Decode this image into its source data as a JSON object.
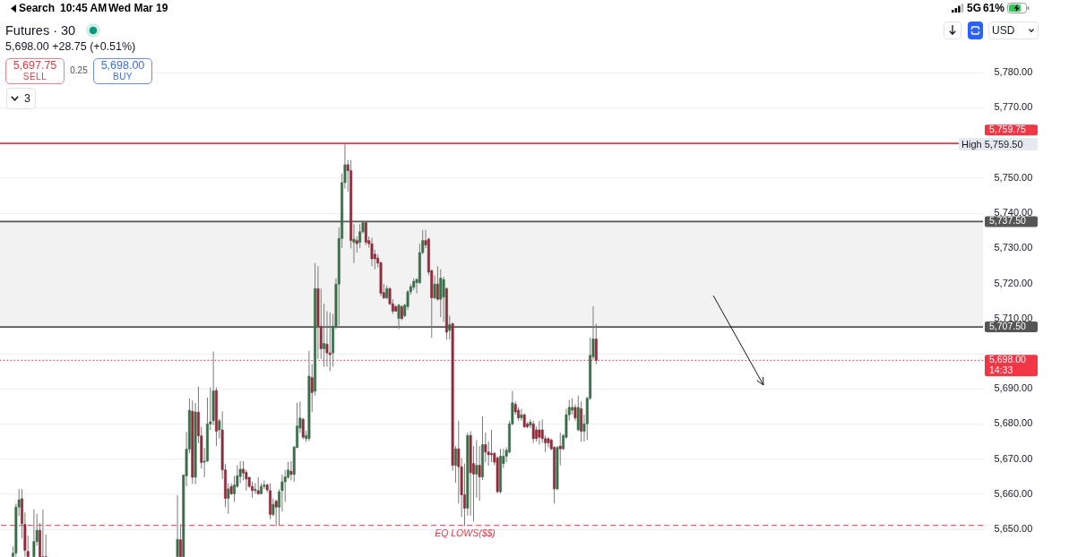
{
  "chart_data": {
    "type": "candlestick",
    "title": "Futures · 30",
    "subtitle": "5,698.00 +28.75 (+0.51%)",
    "categories": [
      null,
      null,
      null,
      null,
      null,
      null,
      null,
      null,
      null,
      null,
      null,
      null,
      null,
      null,
      null,
      null,
      null,
      null,
      null,
      null,
      null,
      null,
      null,
      null,
      null,
      null,
      null,
      null,
      null,
      null,
      null,
      null,
      null,
      null,
      null,
      null,
      null,
      null,
      null,
      null,
      null,
      null,
      null,
      null,
      null,
      null,
      null,
      null,
      null,
      null,
      null,
      null,
      null,
      null,
      null,
      null,
      null,
      null,
      null,
      null,
      null,
      null,
      null,
      null,
      null,
      null,
      null,
      null,
      null,
      null,
      null,
      null,
      null,
      null,
      null,
      null,
      null,
      null,
      null,
      null,
      null,
      null,
      null,
      null,
      null,
      null,
      null,
      null,
      null,
      null,
      null,
      null,
      null,
      null,
      null,
      null,
      null,
      null,
      null,
      null,
      null,
      null,
      null,
      null,
      null,
      null,
      null,
      null,
      null,
      null,
      null,
      null,
      null,
      null,
      null,
      null,
      null,
      null,
      null,
      null,
      null,
      null,
      null,
      null,
      null,
      null,
      null,
      null,
      null,
      null,
      null,
      null,
      null,
      null,
      null,
      null,
      null,
      null,
      null,
      null,
      null,
      null,
      null,
      null,
      null,
      null,
      null,
      null,
      null,
      null,
      null,
      null,
      null,
      null,
      null,
      null,
      null,
      null,
      null,
      null,
      null,
      null,
      null,
      null,
      null,
      null,
      null,
      null,
      null,
      null,
      null,
      null,
      null,
      null,
      null,
      null,
      null,
      null,
      null,
      null,
      null,
      null,
      null,
      null,
      null,
      null,
      null,
      null,
      null,
      null,
      null,
      null,
      null,
      null,
      null,
      null,
      null,
      null,
      null,
      null,
      null,
      null,
      null,
      null,
      null,
      null,
      null,
      null,
      null,
      null,
      null,
      null,
      null,
      null,
      null,
      null,
      null,
      null,
      null,
      null,
      null,
      null,
      null,
      null,
      null,
      null,
      null,
      null,
      null,
      null,
      null,
      null,
      null,
      null,
      null,
      null,
      null,
      null,
      null,
      null,
      null,
      null,
      null,
      null,
      null,
      null,
      null,
      null,
      null,
      null,
      null,
      null,
      null,
      null,
      null,
      null,
      null,
      null,
      null,
      null,
      null,
      null,
      null,
      null,
      null,
      null,
      null,
      null,
      null,
      null,
      null,
      null,
      null,
      null,
      null,
      null,
      null,
      null,
      null,
      null,
      null,
      null,
      null,
      null,
      null,
      null,
      null,
      null,
      null,
      null,
      null,
      null,
      null,
      null,
      null,
      null,
      null,
      null,
      null,
      null,
      null,
      null,
      null,
      null,
      null,
      null,
      null,
      null,
      null,
      null,
      null,
      null,
      null,
      null,
      null,
      null,
      null,
      null,
      null,
      null,
      null,
      null,
      null,
      null,
      null,
      null,
      null,
      null,
      null
    ],
    "ohlc": [
      null,
      null,
      null,
      null,
      [
        5642.1,
        5645.0,
        5642.1,
        5643.1
      ],
      [
        5643.1,
        5657.2,
        5642.1,
        5656.2
      ],
      [
        5656.2,
        5661.4,
        5653.6,
        5658.3
      ],
      [
        5658.6,
        5661.3,
        5647.3,
        5651.5
      ],
      [
        5651.3,
        5654.7,
        5642.1,
        5643.9
      ],
      [
        5643.6,
        5648.1,
        5642.1,
        5642.1
      ],
      null,
      [
        5642.1,
        5655.6,
        5642.1,
        5646.4
      ],
      [
        5646.4,
        5654.3,
        5645.2,
        5649.6
      ],
      [
        5649.6,
        5651.7,
        5642.1,
        5642.1
      ],
      [
        5642.1,
        5655.5,
        5642.1,
        5642.1
      ],
      [
        5642.1,
        5648.4,
        5642.1,
        5642.1
      ],
      null,
      null,
      null,
      null,
      null,
      null,
      null,
      null,
      null,
      null,
      null,
      null,
      null,
      null,
      null,
      null,
      null,
      null,
      null,
      null,
      null,
      null,
      null,
      null,
      null,
      null,
      null,
      null,
      null,
      null,
      null,
      null,
      null,
      null,
      null,
      null,
      null,
      null,
      null,
      null,
      null,
      null,
      null,
      [
        5642.1,
        5659.6,
        5642.1,
        5647.0
      ],
      [
        5646.9,
        5651.3,
        5642.1,
        5642.1
      ],
      [
        5642.1,
        5665.5,
        5642.1,
        5665.3
      ],
      [
        5665.1,
        5677.6,
        5662.1,
        5672.7
      ],
      [
        5672.7,
        5687.1,
        5671.5,
        5683.8
      ],
      [
        5683.5,
        5686.6,
        5662.8,
        5664.7
      ],
      [
        5664.7,
        5685.9,
        5662.7,
        5683.3
      ],
      [
        5683.2,
        5690.5,
        5674.4,
        5676.5
      ],
      [
        5676.5,
        5679.1,
        5667.2,
        5668.9
      ],
      [
        5669.0,
        5673.1,
        5664.7,
        5669.3
      ],
      [
        5669.3,
        5687.4,
        5669.1,
        5679.9
      ],
      [
        5679.9,
        5690.3,
        5678.2,
        5680.5
      ],
      [
        5680.8,
        5700.5,
        5679.5,
        5689.3
      ],
      [
        5689.4,
        5690.3,
        5673.6,
        5677.8
      ],
      [
        5678.2,
        5681.3,
        5675.7,
        5680.8
      ],
      [
        5678.2,
        5683.5,
        5664.2,
        5666.8
      ],
      [
        5666.8,
        5668.5,
        5656.2,
        5658.7
      ],
      [
        5658.7,
        5663.0,
        5654.3,
        5661.4
      ],
      [
        5662.1,
        5663.0,
        5659.7,
        5660.0
      ],
      [
        5660.0,
        5665.1,
        5657.7,
        5662.5
      ],
      [
        5662.1,
        5668.1,
        5661.7,
        5665.1
      ],
      [
        5664.9,
        5669.3,
        5663.0,
        5667.0
      ],
      [
        5667.0,
        5669.3,
        5663.8,
        5665.9
      ],
      [
        5666.1,
        5666.8,
        5660.9,
        5664.2
      ],
      [
        5664.7,
        5664.8,
        5661.7,
        5662.1
      ],
      [
        5662.1,
        5663.4,
        5658.9,
        5660.9
      ],
      [
        5660.9,
        5663.0,
        5660.0,
        5661.3
      ],
      [
        5660.9,
        5664.7,
        5659.7,
        5660.0
      ],
      [
        5660.0,
        5663.0,
        5659.9,
        5662.1
      ],
      [
        5662.1,
        5663.8,
        5661.3,
        5662.5
      ],
      [
        5662.5,
        5663.0,
        5660.4,
        5661.1
      ],
      [
        5660.9,
        5663.0,
        5652.8,
        5654.1
      ],
      [
        5654.1,
        5658.7,
        5653.6,
        5657.0
      ],
      [
        5657.9,
        5658.3,
        5650.7,
        5656.2
      ],
      [
        5656.2,
        5661.3,
        5651.1,
        5660.6
      ],
      [
        5660.9,
        5665.5,
        5654.9,
        5663.4
      ],
      [
        5663.4,
        5666.8,
        5657.7,
        5664.8
      ],
      [
        5664.7,
        5669.1,
        5664.2,
        5666.8
      ],
      [
        5666.4,
        5669.3,
        5663.8,
        5665.5
      ],
      [
        5665.5,
        5673.6,
        5663.4,
        5673.3
      ],
      [
        5673.1,
        5685.9,
        5673.1,
        5679.3
      ],
      [
        5678.7,
        5686.3,
        5677.3,
        5681.6
      ],
      [
        5681.2,
        5681.6,
        5675.5,
        5676.1
      ],
      [
        5675.7,
        5678.0,
        5674.8,
        5676.6
      ],
      [
        5675.7,
        5700.7,
        5675.0,
        5693.5
      ],
      [
        5693.1,
        5696.9,
        5683.3,
        5688.8
      ],
      [
        5689.2,
        5725.7,
        5688.0,
        5718.4
      ],
      [
        5718.4,
        5724.8,
        5698.4,
        5707.7
      ],
      [
        5707.7,
        5718.4,
        5698.4,
        5701.3
      ],
      [
        5701.3,
        5714.1,
        5696.2,
        5702.8
      ],
      [
        5702.6,
        5712.0,
        5696.2,
        5700.1
      ],
      [
        5700.1,
        5711.6,
        5694.9,
        5699.6
      ],
      [
        5700.1,
        5711.2,
        5696.2,
        5707.7
      ],
      [
        5707.7,
        5721.4,
        5706.9,
        5719.7
      ],
      [
        5719.7,
        5735.9,
        5708.0,
        5732.7
      ],
      [
        5732.7,
        5751.2,
        5730.0,
        5748.6
      ],
      [
        5748.6,
        5759.5,
        5746.9,
        5753.7
      ],
      [
        5753.7,
        5755.0,
        5746.0,
        5752.0
      ],
      [
        5752.0,
        5755.0,
        5729.9,
        5732.1
      ],
      [
        5731.6,
        5736.8,
        5725.7,
        5732.5
      ],
      [
        5732.1,
        5733.3,
        5728.7,
        5731.2
      ],
      [
        5731.6,
        5736.8,
        5729.9,
        5734.6
      ],
      [
        5734.6,
        5737.8,
        5734.2,
        5737.2
      ],
      [
        5737.2,
        5737.4,
        5730.8,
        5731.6
      ],
      [
        5732.1,
        5733.3,
        5730.1,
        5731.2
      ],
      [
        5731.2,
        5732.9,
        5724.8,
        5726.9
      ],
      [
        5728.2,
        5729.5,
        5723.9,
        5726.9
      ],
      [
        5727.1,
        5728.2,
        5724.4,
        5725.7
      ],
      [
        5725.8,
        5726.1,
        5716.3,
        5717.1
      ],
      [
        5717.3,
        5719.7,
        5715.4,
        5715.8
      ],
      [
        5715.8,
        5719.3,
        5715.4,
        5718.4
      ],
      [
        5718.4,
        5718.8,
        5713.7,
        5714.1
      ],
      [
        5714.1,
        5715.4,
        5711.2,
        5712.0
      ],
      [
        5713.3,
        5713.7,
        5711.8,
        5712.0
      ],
      [
        5709.9,
        5714.1,
        5706.9,
        5713.7
      ],
      [
        5713.3,
        5713.7,
        5709.4,
        5709.9
      ],
      [
        5710.7,
        5714.1,
        5710.3,
        5713.7
      ],
      [
        5713.3,
        5718.0,
        5712.4,
        5717.5
      ],
      [
        5717.5,
        5719.7,
        5716.7,
        5719.0
      ],
      [
        5718.8,
        5721.4,
        5718.0,
        5720.5
      ],
      [
        5720.1,
        5721.4,
        5717.1,
        5721.0
      ],
      [
        5720.1,
        5731.2,
        5719.7,
        5728.7
      ],
      [
        5728.7,
        5735.1,
        5728.2,
        5732.1
      ],
      [
        5732.1,
        5735.1,
        5729.9,
        5730.8
      ],
      [
        5732.5,
        5732.9,
        5722.2,
        5723.1
      ],
      [
        5723.5,
        5723.9,
        5704.4,
        5715.8
      ],
      [
        5715.8,
        5722.2,
        5715.4,
        5719.7
      ],
      [
        5719.7,
        5724.8,
        5715.0,
        5715.4
      ],
      [
        5715.4,
        5723.9,
        5710.3,
        5721.4
      ],
      [
        5716.0,
        5721.8,
        5709.0,
        5721.0
      ],
      [
        5718.4,
        5718.8,
        5703.9,
        5706.0
      ],
      [
        5706.5,
        5710.7,
        5704.0,
        5708.2
      ],
      [
        5708.4,
        5708.8,
        5666.5,
        5668.1
      ],
      [
        5668.1,
        5673.6,
        5663.1,
        5672.8
      ],
      [
        5672.8,
        5680.8,
        5657.2,
        5667.7
      ],
      [
        5667.7,
        5670.2,
        5653.4,
        5659.7
      ],
      [
        5659.7,
        5668.6,
        5650.8,
        5655.9
      ],
      [
        5655.9,
        5677.4,
        5653.8,
        5676.6
      ],
      [
        5676.6,
        5677.8,
        5653.8,
        5666.0
      ],
      [
        5668.6,
        5673.6,
        5652.1,
        5665.6
      ],
      [
        5665.6,
        5675.3,
        5658.9,
        5668.1
      ],
      [
        5668.1,
        5673.6,
        5658.0,
        5664.8
      ],
      [
        5664.8,
        5682.1,
        5663.9,
        5674.0
      ],
      [
        5674.0,
        5677.4,
        5669.0,
        5671.9
      ],
      [
        5671.9,
        5674.9,
        5668.0,
        5671.1
      ],
      [
        5671.5,
        5678.2,
        5669.0,
        5671.1
      ],
      [
        5671.5,
        5671.9,
        5668.1,
        5669.0
      ],
      [
        5670.2,
        5670.7,
        5660.1,
        5660.6
      ],
      [
        5660.6,
        5672.8,
        5660.1,
        5670.7
      ],
      [
        5668.6,
        5672.8,
        5667.3,
        5670.7
      ],
      [
        5670.7,
        5673.2,
        5669.0,
        5672.4
      ],
      [
        5671.9,
        5680.8,
        5671.5,
        5679.9
      ],
      [
        5679.9,
        5689.3,
        5679.5,
        5685.9
      ],
      [
        5685.5,
        5686.3,
        5682.5,
        5683.3
      ],
      [
        5683.8,
        5684.6,
        5680.8,
        5681.6
      ],
      [
        5681.6,
        5684.2,
        5680.8,
        5682.5
      ],
      [
        5682.5,
        5682.9,
        5678.7,
        5679.1
      ],
      [
        5679.9,
        5680.4,
        5678.7,
        5679.1
      ],
      [
        5679.5,
        5681.2,
        5678.7,
        5680.4
      ],
      [
        5679.9,
        5680.8,
        5674.5,
        5675.7
      ],
      [
        5678.2,
        5679.1,
        5674.9,
        5675.7
      ],
      [
        5678.2,
        5680.8,
        5674.0,
        5676.1
      ],
      [
        5678.2,
        5681.2,
        5674.5,
        5675.7
      ],
      [
        5675.7,
        5676.6,
        5671.9,
        5674.5
      ],
      [
        5675.7,
        5676.1,
        5673.2,
        5674.5
      ],
      [
        5675.3,
        5675.7,
        5672.4,
        5672.8
      ],
      [
        5673.2,
        5673.6,
        5657.2,
        5661.4
      ],
      [
        5661.4,
        5673.6,
        5661.0,
        5673.2
      ],
      [
        5673.6,
        5677.4,
        5668.1,
        5672.8
      ],
      [
        5672.8,
        5677.0,
        5672.4,
        5676.6
      ],
      [
        5676.1,
        5684.2,
        5675.7,
        5682.5
      ],
      [
        5682.5,
        5686.7,
        5680.8,
        5684.6
      ],
      [
        5683.8,
        5687.2,
        5682.5,
        5684.6
      ],
      [
        5684.6,
        5685.5,
        5680.8,
        5681.6
      ],
      [
        5678.2,
        5688.0,
        5677.8,
        5684.6
      ],
      [
        5684.2,
        5686.3,
        5674.9,
        5677.8
      ],
      [
        5677.8,
        5682.5,
        5674.9,
        5679.9
      ],
      [
        5679.9,
        5687.6,
        5675.3,
        5687.2
      ],
      [
        5687.2,
        5704.5,
        5686.7,
        5699.4
      ],
      [
        5699.0,
        5713.4,
        5698.2,
        5704.1
      ],
      [
        5704.1,
        5708.4,
        5696.9,
        5698.0
      ],
      null,
      null,
      null,
      null,
      null,
      null,
      null,
      null,
      null,
      null,
      null,
      null,
      null,
      null,
      null,
      null,
      null,
      null,
      null,
      null,
      null,
      null,
      null,
      null,
      null,
      null,
      null,
      null,
      null,
      null,
      null,
      null,
      null,
      null,
      null,
      null,
      null,
      null,
      null,
      null,
      null,
      null,
      null,
      null,
      null,
      null,
      null,
      null,
      null,
      null,
      null,
      null,
      null,
      null,
      null,
      null,
      null,
      null,
      null,
      null,
      null,
      null,
      null,
      null,
      null,
      null,
      null,
      null,
      null,
      null,
      null,
      null,
      null,
      null,
      null,
      null,
      null,
      null,
      null,
      null,
      null,
      null,
      null,
      null,
      null,
      null,
      null,
      null,
      null,
      null,
      null,
      null,
      null,
      null,
      null,
      null,
      null,
      null,
      null,
      null,
      null,
      null,
      null,
      null,
      null,
      null,
      null,
      null,
      null,
      null,
      null,
      null,
      null,
      null,
      null,
      null,
      null,
      null,
      null,
      null,
      null,
      null,
      null,
      null,
      null,
      null,
      null,
      null,
      null
    ],
    "colors": [
      null,
      null,
      null,
      null,
      "#3a6e48",
      "#3a6e48",
      "#3a6e48",
      "#8e2c3b",
      "#8e2c3b",
      "#8e2c3b",
      null,
      "#3a6e48",
      "#3a6e48",
      "#8e2c3b",
      "#8e2c3b",
      "#8e2c3b",
      null,
      null,
      null,
      null,
      null,
      null,
      null,
      null,
      null,
      null,
      null,
      null,
      null,
      null,
      null,
      null,
      null,
      null,
      null,
      null,
      null,
      null,
      null,
      null,
      null,
      null,
      null,
      null,
      null,
      null,
      null,
      null,
      null,
      null,
      null,
      null,
      null,
      null,
      null,
      null,
      null,
      null,
      null,
      "#3a6e48",
      "#8e2c3b",
      "#3a6e48",
      "#3a6e48",
      "#3a6e48",
      "#8e2c3b",
      "#3a6e48",
      "#8e2c3b",
      "#8e2c3b",
      "#3a6e48",
      "#3a6e48",
      "#3a6e48",
      "#3a6e48",
      "#8e2c3b",
      "#3a6e48",
      "#8e2c3b",
      "#8e2c3b",
      "#3a6e48",
      "#8e2c3b",
      "#3a6e48",
      "#3a6e48",
      "#3a6e48",
      "#8e2c3b",
      "#8e2c3b",
      "#8e2c3b",
      "#8e2c3b",
      "#3a6e48",
      "#8e2c3b",
      "#3a6e48",
      "#3a6e48",
      "#8e2c3b",
      "#8e2c3b",
      "#3a6e48",
      "#8e2c3b",
      "#3a6e48",
      "#3a6e48",
      "#3a6e48",
      "#3a6e48",
      "#8e2c3b",
      "#3a6e48",
      "#3a6e48",
      "#3a6e48",
      "#8e2c3b",
      "#3a6e48",
      "#3a6e48",
      "#8e2c3b",
      "#3a6e48",
      "#8e2c3b",
      "#8e2c3b",
      "#3a6e48",
      "#8e2c3b",
      "#8e2c3b",
      "#3a6e48",
      "#3a6e48",
      "#3a6e48",
      "#3a6e48",
      "#3a6e48",
      "#8e2c3b",
      "#8e2c3b",
      "#3a6e48",
      "#8e2c3b",
      "#3a6e48",
      "#3a6e48",
      "#8e2c3b",
      "#8e2c3b",
      "#8e2c3b",
      "#8e2c3b",
      "#8e2c3b",
      "#8e2c3b",
      "#8e2c3b",
      "#3a6e48",
      "#8e2c3b",
      "#8e2c3b",
      "#8e2c3b",
      "#3a6e48",
      "#8e2c3b",
      "#3a6e48",
      "#3a6e48",
      "#3a6e48",
      "#3a6e48",
      "#3a6e48",
      "#3a6e48",
      "#3a6e48",
      "#8e2c3b",
      "#8e2c3b",
      "#8e2c3b",
      "#3a6e48",
      "#8e2c3b",
      "#3a6e48",
      "#3a6e48",
      "#8e2c3b",
      "#3a6e48",
      "#8e2c3b",
      "#3a6e48",
      "#8e2c3b",
      "#8e2c3b",
      "#8e2c3b",
      "#3a6e48",
      "#8e2c3b",
      "#8e2c3b",
      "#3a6e48",
      "#8e2c3b",
      "#3a6e48",
      "#8e2c3b",
      "#8e2c3b",
      "#8e2c3b",
      "#8e2c3b",
      "#8e2c3b",
      "#3a6e48",
      "#3a6e48",
      "#3a6e48",
      "#3a6e48",
      "#3a6e48",
      "#8e2c3b",
      "#8e2c3b",
      "#3a6e48",
      "#8e2c3b",
      "#8e2c3b",
      "#3a6e48",
      "#8e2c3b",
      "#8e2c3b",
      "#8e2c3b",
      "#8e2c3b",
      "#8e2c3b",
      "#8e2c3b",
      "#8e2c3b",
      "#8e2c3b",
      "#3a6e48",
      "#8e2c3b",
      "#3a6e48",
      "#3a6e48",
      "#3a6e48",
      "#3a6e48",
      "#8e2c3b",
      "#3a6e48",
      "#8e2c3b",
      "#3a6e48",
      "#3a6e48",
      "#3a6e48",
      "#3a6e48",
      "#8e2c3b",
      null,
      null,
      null,
      null,
      null,
      null,
      null,
      null,
      null,
      null,
      null,
      null,
      null,
      null,
      null,
      null,
      null,
      null,
      null,
      null,
      null,
      null,
      null,
      null,
      null,
      null,
      null,
      null,
      null,
      null,
      null,
      null,
      null,
      null,
      null,
      null,
      null,
      null,
      null,
      null,
      null,
      null,
      null,
      null,
      null,
      null,
      null,
      null,
      null,
      null,
      null,
      null,
      null,
      null,
      null,
      null,
      null,
      null,
      null,
      null,
      null,
      null,
      null,
      null,
      null,
      null,
      null,
      null,
      null,
      null,
      null,
      null,
      null,
      null,
      null,
      null,
      null,
      null,
      null,
      null,
      null,
      null,
      null,
      null,
      null,
      null,
      null,
      null,
      null,
      null,
      null,
      null,
      null,
      null,
      null,
      null,
      null,
      null,
      null,
      null,
      null,
      null,
      null,
      null,
      null,
      null,
      null,
      null,
      null,
      null,
      null,
      null,
      null,
      null,
      null,
      null,
      null,
      null,
      null,
      null,
      null,
      null,
      null,
      null,
      null,
      null,
      null,
      null,
      null
    ],
    "ylim": [
      5642,
      5796
    ],
    "yticks": [
      {
        "value": 5650,
        "label": "5,650.00"
      },
      {
        "value": 5660,
        "label": "5,660.00"
      },
      {
        "value": 5670,
        "label": "5,670.00"
      },
      {
        "value": 5680,
        "label": "5,680.00"
      },
      {
        "value": 5690,
        "label": "5,690.00"
      },
      {
        "value": 5700,
        "label": null
      },
      {
        "value": 5710,
        "label": "5,710.00"
      },
      {
        "value": 5720,
        "label": "5,720.00"
      },
      {
        "value": 5730,
        "label": "5,730.00"
      },
      {
        "value": 5740,
        "label": "5,740.00"
      },
      {
        "value": 5750,
        "label": "5,750.00"
      },
      {
        "value": 5770,
        "label": "5,770.00"
      },
      {
        "value": 5780,
        "label": "5,780.00"
      }
    ],
    "grid": "y",
    "bands": [
      {
        "axis": "y",
        "from": 5707.5,
        "to": 5737.5,
        "color": "#f2f2f2"
      }
    ],
    "ref_lines": [
      {
        "axis": "y",
        "value": 5759.75,
        "label": "5,759.75",
        "color": "#f23645",
        "line_style": "solid"
      },
      {
        "axis": "y",
        "value": 5737.5,
        "label": "5,737.50",
        "color": "#555555",
        "line_style": "solid"
      },
      {
        "axis": "y",
        "value": 5707.5,
        "label": "5,707.50",
        "color": "#555555",
        "line_style": "solid"
      },
      {
        "axis": "y",
        "value": 5698,
        "label": "5,698.00\n14:33",
        "color": "#f23645",
        "line_style": "dotted"
      },
      {
        "axis": "y",
        "value": 5651,
        "label": "EQ LOWS($$)",
        "color": "#f23645",
        "line_style": "dashed"
      }
    ],
    "annotations": [
      "Search",
      "10:45 AM",
      "Wed Mar 19",
      "5G",
      "61%",
      "5,697.75",
      "SELL",
      "0.25",
      "5,698.00",
      "BUY",
      "3",
      "USD",
      "High 5,759.50"
    ]
  }
}
